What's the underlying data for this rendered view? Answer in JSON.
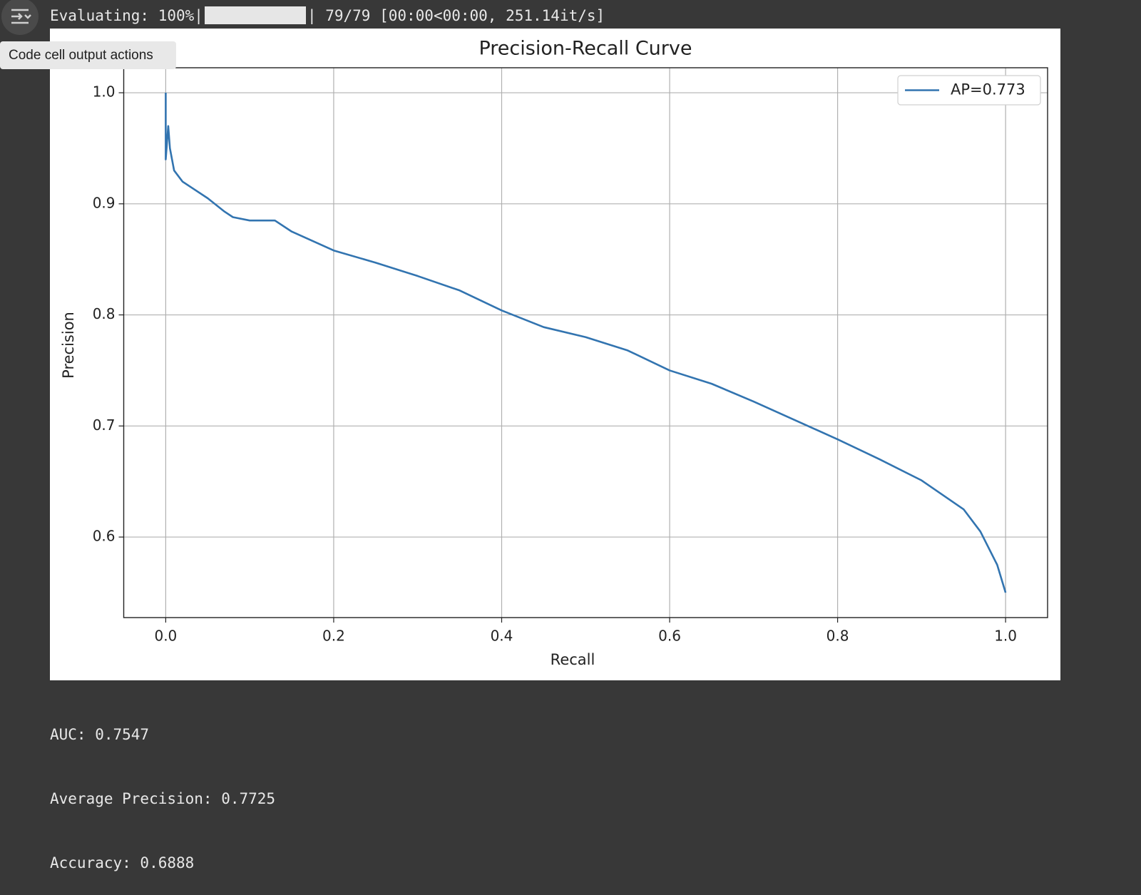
{
  "progress": {
    "label": "Evaluating: 100%|",
    "stats": "| 79/79 [00:00<00:00, 251.14it/s]"
  },
  "tooltip": "Code cell output actions",
  "output_lines": [
    "AUC: 0.7547",
    "Average Precision: 0.7725",
    "Accuracy: 0.6888"
  ],
  "chart_data": {
    "type": "line",
    "title": "Precision-Recall Curve",
    "xlabel": "Recall",
    "ylabel": "Precision",
    "x": [
      0,
      0,
      0.003,
      0.005,
      0.01,
      0.02,
      0.03,
      0.05,
      0.07,
      0.08,
      0.1,
      0.13,
      0.15,
      0.2,
      0.25,
      0.3,
      0.35,
      0.4,
      0.45,
      0.5,
      0.55,
      0.6,
      0.65,
      0.7,
      0.75,
      0.8,
      0.85,
      0.9,
      0.95,
      0.97,
      0.99,
      1.0
    ],
    "series": [
      {
        "name": "AP=0.773",
        "color": "#3274b0",
        "values": [
          1.0,
          0.94,
          0.97,
          0.95,
          0.93,
          0.92,
          0.915,
          0.905,
          0.893,
          0.888,
          0.885,
          0.885,
          0.875,
          0.858,
          0.847,
          0.835,
          0.822,
          0.804,
          0.789,
          0.78,
          0.768,
          0.75,
          0.738,
          0.722,
          0.705,
          0.688,
          0.67,
          0.651,
          0.625,
          0.605,
          0.575,
          0.55
        ]
      }
    ],
    "xlim": [
      -0.05,
      1.05
    ],
    "ylim": [
      0.5275,
      1.0225
    ],
    "xticks": [
      {
        "value": 0,
        "label": "0.0"
      },
      0.2,
      0.4,
      0.6,
      0.8,
      {
        "value": 1,
        "label": "1.0"
      }
    ],
    "yticks": [
      0.6,
      0.7,
      0.8,
      0.9,
      {
        "value": 1,
        "label": "1.0"
      }
    ],
    "grid": true,
    "legend": "upper right"
  }
}
